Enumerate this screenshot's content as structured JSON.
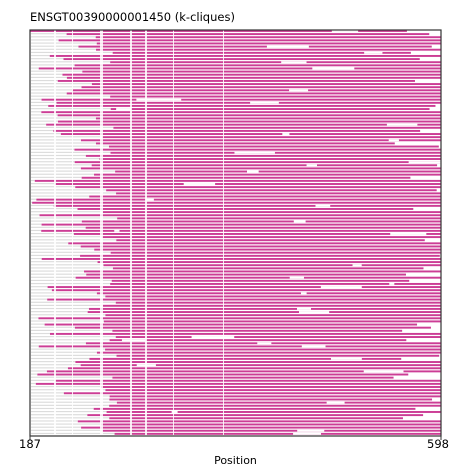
{
  "chart_data": {
    "type": "heatmap",
    "title": "ENSGT00390000001450 (k-cliques)",
    "xlabel": "Position",
    "ylabel": "",
    "x_range": [
      187,
      598
    ],
    "x_ticks": [
      "187",
      "598"
    ],
    "grid": false,
    "rows": 130,
    "colors": {
      "aligned": "#cc3d95",
      "gap": "#ffffff",
      "low_coverage": "#dcdcdc",
      "frame": "#333333"
    },
    "gap_columns": [
      [
        211,
        213
      ],
      [
        229,
        230
      ],
      [
        257,
        260
      ],
      [
        287,
        289
      ],
      [
        302,
        304
      ],
      [
        330,
        331
      ],
      [
        380,
        381
      ]
    ],
    "row_start_extent": [
      187,
      276
    ],
    "row_end_extent": [
      550,
      598
    ]
  }
}
